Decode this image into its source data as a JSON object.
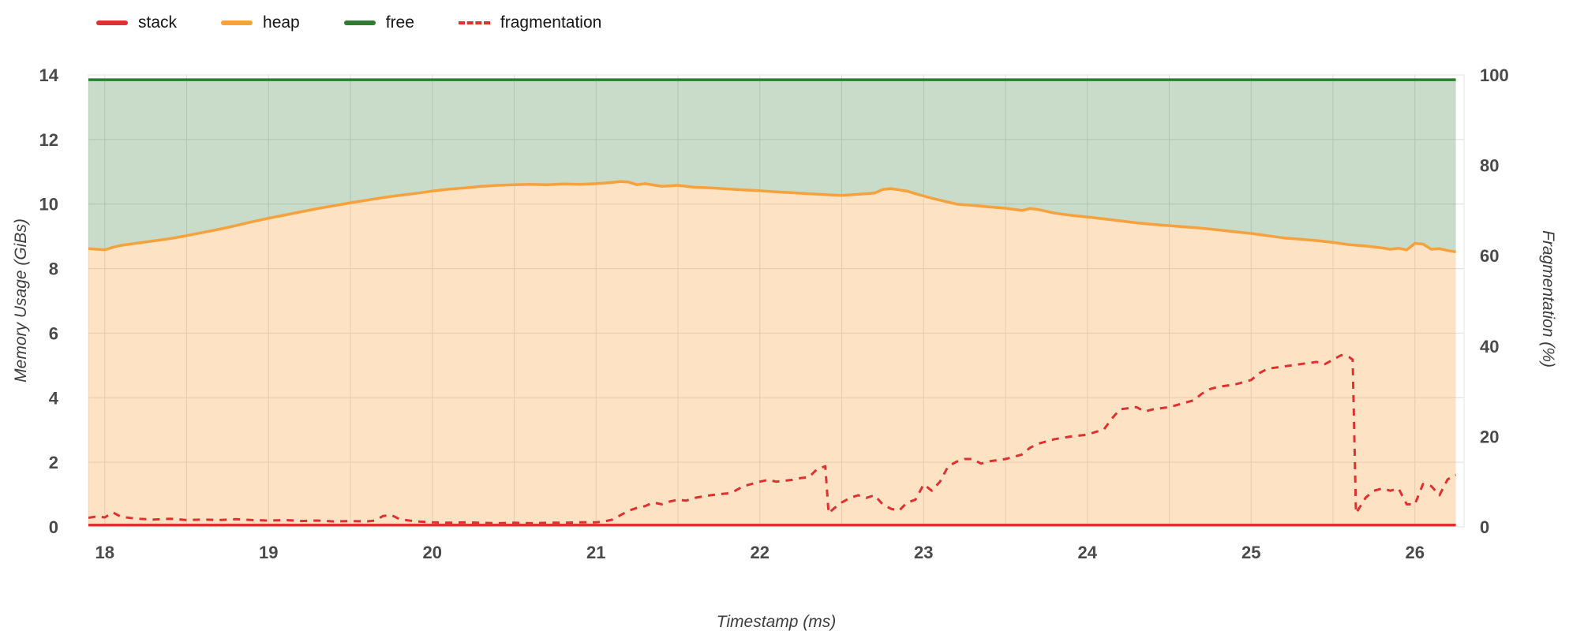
{
  "legend": {
    "items": [
      {
        "label": "stack",
        "color": "#e03131",
        "fill": "rgba(224,49,49,0.30)",
        "type": "area"
      },
      {
        "label": "heap",
        "color": "#f6a13c",
        "fill": "rgba(247,163,56,0.30)",
        "type": "area"
      },
      {
        "label": "free",
        "color": "#2e7d32",
        "fill": "rgba(56,128,60,0.28)",
        "type": "area"
      },
      {
        "label": "fragmentation",
        "color": "#e03131",
        "type": "dashed-line"
      }
    ]
  },
  "chart_data": {
    "type": "area",
    "title": "",
    "xlabel": "Timestamp (ms)",
    "ylabel_left": "Memory Usage (GiBs)",
    "ylabel_right": "Fragmentation (%)",
    "xlim": [
      17.9,
      26.3
    ],
    "ylim_left": [
      0,
      14
    ],
    "ylim_right": [
      0,
      100
    ],
    "x_ticks": [
      18,
      19,
      20,
      21,
      22,
      23,
      24,
      25,
      26
    ],
    "y_ticks_left": [
      0,
      2,
      4,
      6,
      8,
      10,
      12,
      14
    ],
    "y_ticks_right": [
      0,
      20,
      40,
      60,
      80,
      100
    ],
    "grid": {
      "x_minor_step": 0.5,
      "color": "#dedede"
    },
    "legend_position": "top-left",
    "legend_entries": [
      "stack",
      "heap",
      "free",
      "fragmentation"
    ],
    "series": {
      "stack": {
        "axis": "left",
        "value": 0.06,
        "color": "#e03131",
        "fill": "rgba(224,49,49,0.30)"
      },
      "free_top": {
        "axis": "left",
        "value": 13.85,
        "color": "#2e7d32",
        "fill": "rgba(56,128,60,0.28)"
      },
      "heap": {
        "axis": "left",
        "color": "#f6a13c",
        "fill": "rgba(247,163,56,0.30)",
        "points": [
          [
            17.9,
            8.62
          ],
          [
            18.0,
            8.58
          ],
          [
            18.05,
            8.66
          ],
          [
            18.1,
            8.72
          ],
          [
            18.2,
            8.79
          ],
          [
            18.3,
            8.86
          ],
          [
            18.4,
            8.93
          ],
          [
            18.5,
            9.02
          ],
          [
            18.6,
            9.12
          ],
          [
            18.7,
            9.22
          ],
          [
            18.8,
            9.33
          ],
          [
            18.9,
            9.45
          ],
          [
            19.0,
            9.56
          ],
          [
            19.1,
            9.66
          ],
          [
            19.2,
            9.76
          ],
          [
            19.3,
            9.86
          ],
          [
            19.4,
            9.95
          ],
          [
            19.5,
            10.04
          ],
          [
            19.6,
            10.12
          ],
          [
            19.7,
            10.2
          ],
          [
            19.8,
            10.27
          ],
          [
            19.9,
            10.33
          ],
          [
            20.0,
            10.4
          ],
          [
            20.1,
            10.46
          ],
          [
            20.2,
            10.5
          ],
          [
            20.3,
            10.55
          ],
          [
            20.4,
            10.58
          ],
          [
            20.5,
            10.6
          ],
          [
            20.6,
            10.61
          ],
          [
            20.7,
            10.6
          ],
          [
            20.8,
            10.62
          ],
          [
            20.9,
            10.61
          ],
          [
            21.0,
            10.63
          ],
          [
            21.1,
            10.67
          ],
          [
            21.15,
            10.7
          ],
          [
            21.2,
            10.68
          ],
          [
            21.25,
            10.6
          ],
          [
            21.3,
            10.63
          ],
          [
            21.4,
            10.55
          ],
          [
            21.5,
            10.58
          ],
          [
            21.6,
            10.52
          ],
          [
            21.7,
            10.5
          ],
          [
            21.8,
            10.47
          ],
          [
            21.9,
            10.44
          ],
          [
            22.0,
            10.41
          ],
          [
            22.1,
            10.38
          ],
          [
            22.2,
            10.35
          ],
          [
            22.3,
            10.32
          ],
          [
            22.4,
            10.29
          ],
          [
            22.5,
            10.27
          ],
          [
            22.6,
            10.3
          ],
          [
            22.7,
            10.34
          ],
          [
            22.75,
            10.45
          ],
          [
            22.8,
            10.48
          ],
          [
            22.85,
            10.44
          ],
          [
            22.9,
            10.4
          ],
          [
            22.95,
            10.32
          ],
          [
            23.0,
            10.25
          ],
          [
            23.05,
            10.18
          ],
          [
            23.1,
            10.12
          ],
          [
            23.2,
            10.0
          ],
          [
            23.3,
            9.96
          ],
          [
            23.4,
            9.91
          ],
          [
            23.5,
            9.87
          ],
          [
            23.6,
            9.8
          ],
          [
            23.65,
            9.86
          ],
          [
            23.7,
            9.83
          ],
          [
            23.8,
            9.72
          ],
          [
            23.9,
            9.65
          ],
          [
            24.0,
            9.6
          ],
          [
            24.1,
            9.54
          ],
          [
            24.2,
            9.48
          ],
          [
            24.3,
            9.42
          ],
          [
            24.4,
            9.37
          ],
          [
            24.5,
            9.33
          ],
          [
            24.6,
            9.29
          ],
          [
            24.7,
            9.25
          ],
          [
            24.8,
            9.2
          ],
          [
            24.9,
            9.14
          ],
          [
            25.0,
            9.09
          ],
          [
            25.1,
            9.02
          ],
          [
            25.2,
            8.95
          ],
          [
            25.3,
            8.91
          ],
          [
            25.4,
            8.87
          ],
          [
            25.5,
            8.81
          ],
          [
            25.6,
            8.74
          ],
          [
            25.7,
            8.7
          ],
          [
            25.8,
            8.64
          ],
          [
            25.85,
            8.6
          ],
          [
            25.9,
            8.63
          ],
          [
            25.95,
            8.58
          ],
          [
            26.0,
            8.78
          ],
          [
            26.05,
            8.76
          ],
          [
            26.1,
            8.6
          ],
          [
            26.15,
            8.62
          ],
          [
            26.2,
            8.56
          ],
          [
            26.25,
            8.52
          ]
        ]
      },
      "fragmentation": {
        "axis": "right",
        "color": "#e03131",
        "dash": [
          9,
          8
        ],
        "points": [
          [
            17.9,
            2.0
          ],
          [
            17.95,
            2.3
          ],
          [
            18.0,
            2.1
          ],
          [
            18.05,
            3.2
          ],
          [
            18.1,
            2.2
          ],
          [
            18.2,
            1.8
          ],
          [
            18.3,
            1.6
          ],
          [
            18.4,
            1.8
          ],
          [
            18.5,
            1.5
          ],
          [
            18.6,
            1.6
          ],
          [
            18.7,
            1.5
          ],
          [
            18.8,
            1.7
          ],
          [
            18.9,
            1.5
          ],
          [
            19.0,
            1.4
          ],
          [
            19.1,
            1.5
          ],
          [
            19.2,
            1.3
          ],
          [
            19.3,
            1.4
          ],
          [
            19.4,
            1.2
          ],
          [
            19.5,
            1.3
          ],
          [
            19.6,
            1.2
          ],
          [
            19.65,
            1.4
          ],
          [
            19.7,
            2.4
          ],
          [
            19.75,
            2.6
          ],
          [
            19.8,
            1.7
          ],
          [
            19.9,
            1.2
          ],
          [
            20.0,
            1.0
          ],
          [
            20.1,
            0.9
          ],
          [
            20.2,
            1.0
          ],
          [
            20.3,
            0.9
          ],
          [
            20.4,
            0.8
          ],
          [
            20.5,
            0.9
          ],
          [
            20.6,
            0.8
          ],
          [
            20.7,
            0.9
          ],
          [
            20.8,
            0.9
          ],
          [
            20.9,
            1.0
          ],
          [
            21.0,
            1.0
          ],
          [
            21.05,
            1.2
          ],
          [
            21.1,
            1.6
          ],
          [
            21.15,
            2.6
          ],
          [
            21.2,
            3.6
          ],
          [
            21.25,
            4.2
          ],
          [
            21.3,
            4.6
          ],
          [
            21.35,
            5.4
          ],
          [
            21.4,
            5.0
          ],
          [
            21.45,
            5.6
          ],
          [
            21.5,
            6.0
          ],
          [
            21.55,
            5.8
          ],
          [
            21.6,
            6.4
          ],
          [
            21.7,
            7.0
          ],
          [
            21.8,
            7.4
          ],
          [
            21.85,
            8.0
          ],
          [
            21.9,
            9.0
          ],
          [
            22.0,
            10.0
          ],
          [
            22.05,
            10.4
          ],
          [
            22.1,
            10.0
          ],
          [
            22.15,
            10.2
          ],
          [
            22.2,
            10.4
          ],
          [
            22.25,
            10.8
          ],
          [
            22.3,
            11.0
          ],
          [
            22.35,
            12.8
          ],
          [
            22.4,
            13.4
          ],
          [
            22.42,
            3.0
          ],
          [
            22.45,
            4.0
          ],
          [
            22.5,
            5.4
          ],
          [
            22.55,
            6.4
          ],
          [
            22.6,
            7.0
          ],
          [
            22.65,
            6.4
          ],
          [
            22.7,
            7.0
          ],
          [
            22.75,
            5.0
          ],
          [
            22.8,
            4.0
          ],
          [
            22.85,
            3.6
          ],
          [
            22.9,
            5.4
          ],
          [
            22.95,
            6.0
          ],
          [
            23.0,
            9.4
          ],
          [
            23.05,
            8.0
          ],
          [
            23.1,
            10.0
          ],
          [
            23.15,
            13.4
          ],
          [
            23.2,
            14.4
          ],
          [
            23.25,
            15.0
          ],
          [
            23.3,
            15.0
          ],
          [
            23.35,
            14.0
          ],
          [
            23.4,
            14.5
          ],
          [
            23.5,
            15.0
          ],
          [
            23.6,
            16.0
          ],
          [
            23.65,
            17.5
          ],
          [
            23.7,
            18.4
          ],
          [
            23.8,
            19.4
          ],
          [
            23.9,
            20.0
          ],
          [
            24.0,
            20.4
          ],
          [
            24.05,
            21.0
          ],
          [
            24.1,
            21.5
          ],
          [
            24.15,
            24.0
          ],
          [
            24.2,
            26.0
          ],
          [
            24.3,
            26.5
          ],
          [
            24.35,
            25.5
          ],
          [
            24.4,
            26.0
          ],
          [
            24.5,
            26.5
          ],
          [
            24.55,
            27.0
          ],
          [
            24.6,
            27.5
          ],
          [
            24.65,
            28.0
          ],
          [
            24.7,
            29.5
          ],
          [
            24.75,
            30.5
          ],
          [
            24.8,
            31.0
          ],
          [
            24.9,
            31.5
          ],
          [
            25.0,
            32.5
          ],
          [
            25.05,
            34.0
          ],
          [
            25.1,
            35.0
          ],
          [
            25.2,
            35.5
          ],
          [
            25.3,
            36.0
          ],
          [
            25.4,
            36.5
          ],
          [
            25.45,
            36.0
          ],
          [
            25.5,
            37.0
          ],
          [
            25.55,
            38.0
          ],
          [
            25.6,
            37.5
          ],
          [
            25.62,
            37.0
          ],
          [
            25.64,
            3.0
          ],
          [
            25.7,
            6.5
          ],
          [
            25.75,
            8.0
          ],
          [
            25.8,
            8.5
          ],
          [
            25.85,
            8.0
          ],
          [
            25.9,
            8.5
          ],
          [
            25.95,
            5.0
          ],
          [
            26.0,
            5.0
          ],
          [
            26.05,
            9.5
          ],
          [
            26.1,
            9.0
          ],
          [
            26.15,
            7.0
          ],
          [
            26.2,
            10.5
          ],
          [
            26.25,
            11.5
          ]
        ]
      }
    }
  }
}
